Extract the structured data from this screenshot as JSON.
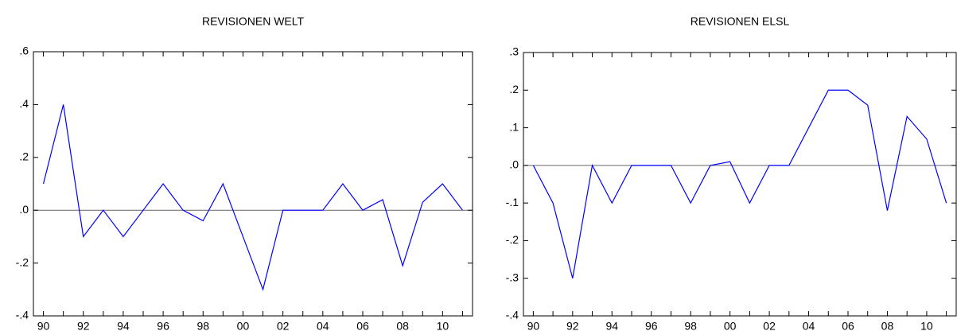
{
  "chart_data": [
    {
      "type": "line",
      "title": "REVISIONEN WELT",
      "categories": [
        "90",
        null,
        "92",
        null,
        "94",
        null,
        "96",
        null,
        "98",
        null,
        "00",
        null,
        "02",
        null,
        "04",
        null,
        "06",
        null,
        "08",
        null,
        "10",
        null
      ],
      "values": [
        0.1,
        0.4,
        -0.1,
        0.0,
        -0.1,
        0.0,
        0.1,
        0.0,
        -0.04,
        0.1,
        -0.1,
        -0.3,
        0.0,
        0.0,
        0.0,
        0.1,
        0.0,
        0.04,
        -0.21,
        0.03,
        0.1,
        0.0
      ],
      "color": "#0000ff",
      "zero_line": true,
      "ylim": [
        -0.4,
        0.6
      ],
      "yticks": [
        {
          "value": -0.4,
          "label": "-.4"
        },
        {
          "value": -0.2,
          "label": "-.2"
        },
        {
          "value": 0,
          "label": ".0"
        },
        {
          "value": 0.2,
          "label": ".2"
        },
        {
          "value": 0.4,
          "label": ".4"
        },
        {
          "value": 0.6,
          "label": ".6"
        }
      ]
    },
    {
      "type": "line",
      "title": "REVISIONEN ELSL",
      "categories": [
        "90",
        null,
        "92",
        null,
        "94",
        null,
        "96",
        null,
        "98",
        null,
        "00",
        null,
        "02",
        null,
        "04",
        null,
        "06",
        null,
        "08",
        null,
        "10",
        null
      ],
      "values": [
        0.0,
        -0.1,
        -0.3,
        0.0,
        -0.1,
        0.0,
        0.0,
        0.0,
        -0.1,
        0.0,
        0.01,
        -0.1,
        0.0,
        0.0,
        0.1,
        0.2,
        0.2,
        0.16,
        -0.12,
        0.13,
        0.07,
        -0.1
      ],
      "color": "#0000ff",
      "zero_line": true,
      "ylim": [
        -0.4,
        0.3
      ],
      "yticks": [
        {
          "value": -0.4,
          "label": "-.4"
        },
        {
          "value": -0.3,
          "label": "-.3"
        },
        {
          "value": -0.2,
          "label": "-.2"
        },
        {
          "value": -0.1,
          "label": "-.1"
        },
        {
          "value": 0,
          "label": ".0"
        },
        {
          "value": 0.1,
          "label": ".1"
        },
        {
          "value": 0.2,
          "label": ".2"
        },
        {
          "value": 0.3,
          "label": ".3"
        }
      ]
    }
  ]
}
